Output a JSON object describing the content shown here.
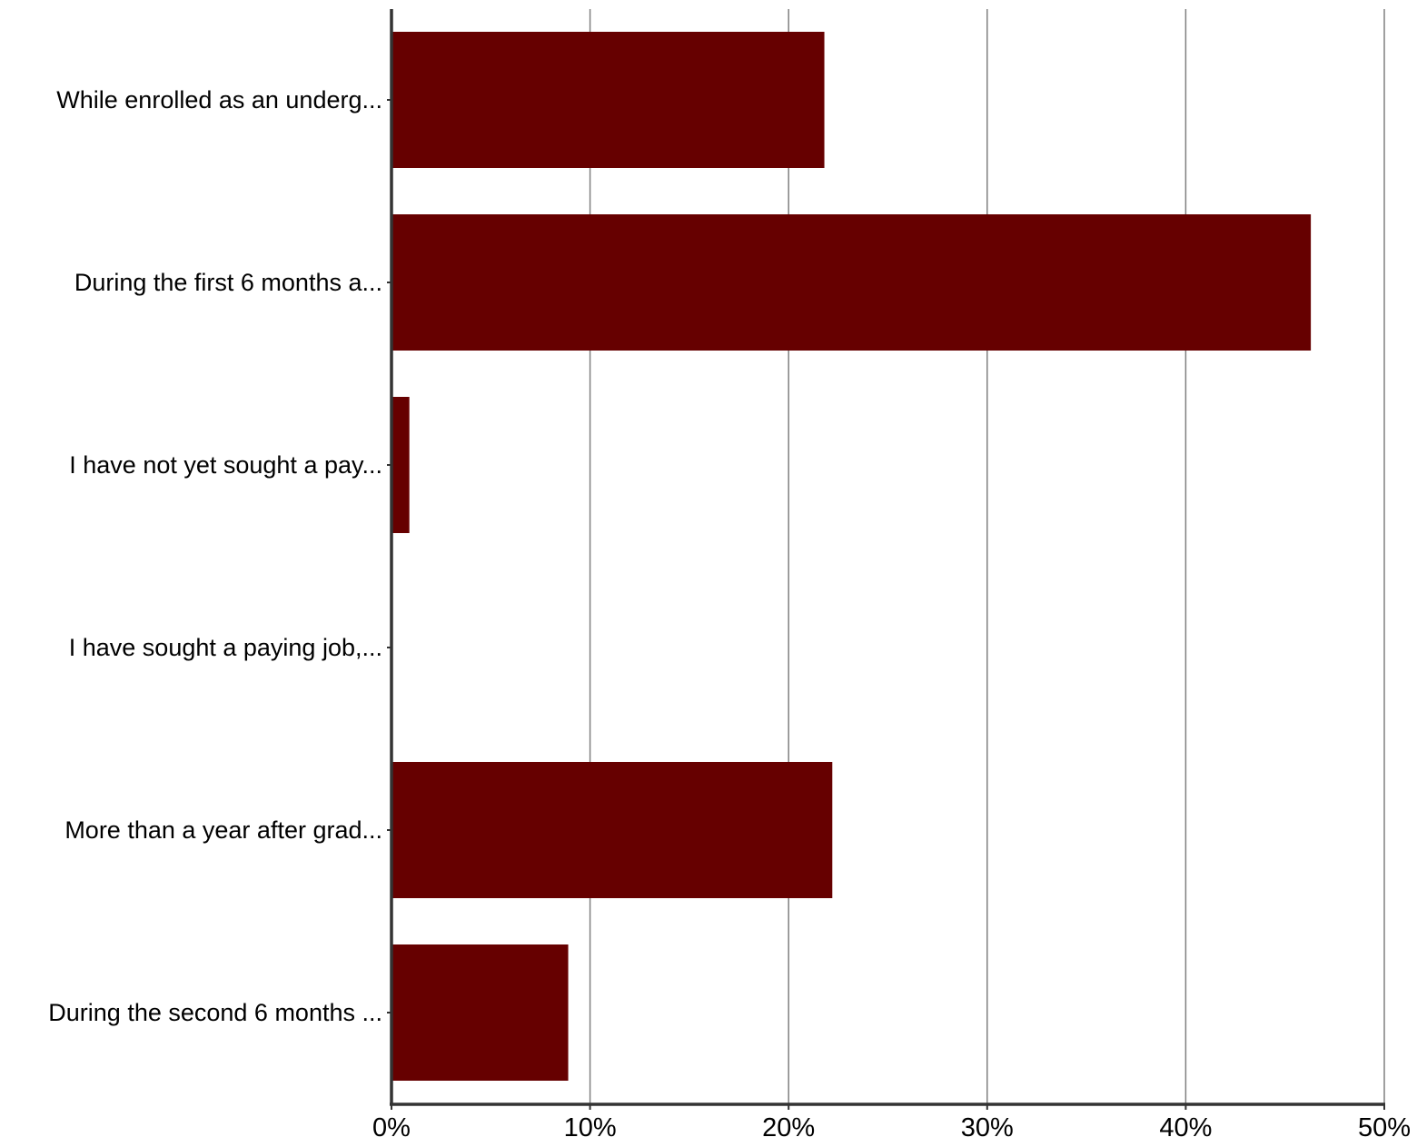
{
  "chart_data": {
    "type": "bar",
    "orientation": "horizontal",
    "categories": [
      "While enrolled as an underg...",
      "During the first 6 months a...",
      "I have not yet sought a pay...",
      "I have sought a paying job,...",
      "More than a year after grad...",
      "During the second 6 months ..."
    ],
    "values": [
      21.8,
      46.3,
      0.9,
      0,
      22.2,
      8.9
    ],
    "xlim": [
      0,
      50
    ],
    "x_ticks": [
      0,
      10,
      20,
      30,
      40,
      50
    ],
    "x_tick_labels": [
      "0%",
      "10%",
      "20%",
      "30%",
      "40%",
      "50%"
    ],
    "grid": "vertical",
    "legend": "none",
    "bar_color": "#660000",
    "gridline_color": "#808080",
    "axis_color": "#333333"
  }
}
